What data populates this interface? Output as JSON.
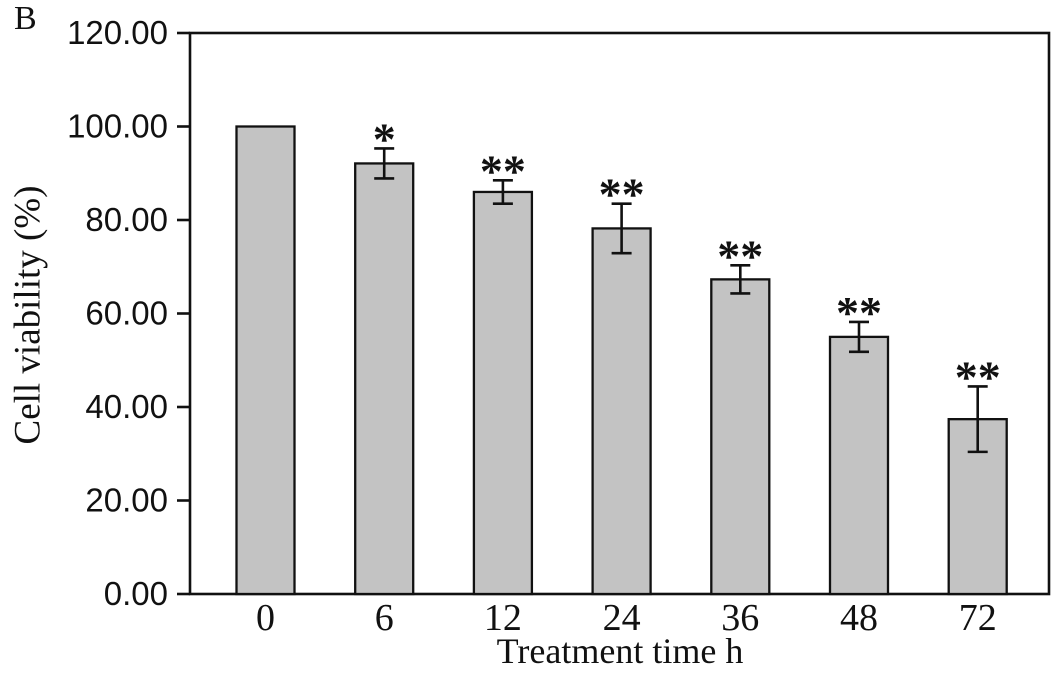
{
  "panel_label": "B",
  "colors": {
    "background": "#ffffff",
    "bar_fill": "#c3c3c3",
    "bar_border": "#111111",
    "axis": "#111111",
    "error_bar": "#111111",
    "text": "#111111"
  },
  "chart_data": {
    "type": "bar",
    "title": "",
    "xlabel": "Treatment time h",
    "ylabel": "Cell viability (%)",
    "categories": [
      "0",
      "6",
      "12",
      "24",
      "36",
      "48",
      "72"
    ],
    "values": [
      100.0,
      92.1,
      86.0,
      78.2,
      67.3,
      55.0,
      37.4
    ],
    "error_bars": [
      0,
      3.2,
      2.5,
      5.3,
      3.0,
      3.2,
      7.0
    ],
    "significance": [
      "",
      "*",
      "**",
      "**",
      "**",
      "**",
      "**"
    ],
    "ylim": [
      0,
      120
    ],
    "ytick_step": 20,
    "ytick_labels": [
      "0.00",
      "20.00",
      "40.00",
      "60.00",
      "80.00",
      "100.00",
      "120.00"
    ],
    "grid": false,
    "legend": null,
    "plot_border": true
  }
}
